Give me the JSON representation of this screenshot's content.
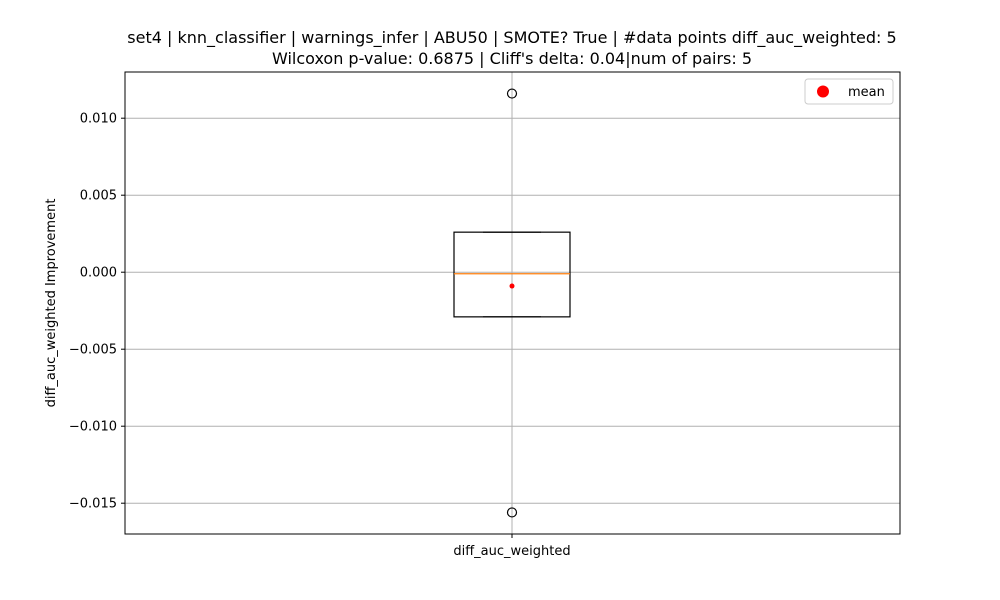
{
  "chart_data": {
    "type": "box",
    "title_line1": "set4 | knn_classifier | warnings_infer | ABU50 | SMOTE? True | #data points diff_auc_weighted: 5",
    "title_line2": "Wilcoxon p-value: 0.6875 | Cliff's delta: 0.04|num of pairs: 5",
    "xlabel": "",
    "ylabel": "diff_auc_weighted Improvement",
    "categories": [
      "diff_auc_weighted"
    ],
    "ylim": [
      -0.017,
      0.013
    ],
    "yticks": [
      0.01,
      0.005,
      0.0,
      -0.005,
      -0.01,
      -0.015
    ],
    "ytick_labels": [
      "0.010",
      "0.005",
      "0.000",
      "−0.005",
      "−0.010",
      "−0.015"
    ],
    "grid": true,
    "legend": {
      "placement": "top-right",
      "entries": [
        "mean"
      ]
    },
    "box": {
      "q1": -0.0029,
      "median": -0.0001,
      "q3": 0.0026,
      "whisker_low": -0.0029,
      "whisker_high": 0.0026,
      "mean": -0.0009,
      "outliers": [
        0.0116,
        -0.0156
      ]
    },
    "colors": {
      "median": "#ff7f0e",
      "mean": "#ff0000",
      "grid": "#b0b0b0",
      "box": "#000000"
    }
  }
}
